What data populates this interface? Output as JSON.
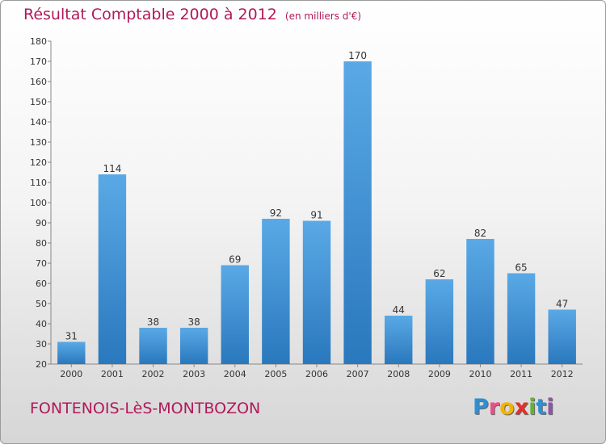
{
  "chart_data": {
    "type": "bar",
    "title": "Résultat Comptable 2000 à 2012",
    "subtitle": "(en milliers d'€)",
    "categories": [
      "2000",
      "2001",
      "2002",
      "2003",
      "2004",
      "2005",
      "2006",
      "2007",
      "2008",
      "2009",
      "2010",
      "2011",
      "2012"
    ],
    "values": [
      31,
      114,
      38,
      38,
      69,
      92,
      91,
      170,
      44,
      62,
      82,
      65,
      47
    ],
    "ylim": [
      20,
      180
    ],
    "yticks": [
      20,
      30,
      40,
      50,
      60,
      70,
      80,
      90,
      100,
      110,
      120,
      130,
      140,
      150,
      160,
      170,
      180
    ],
    "xlabel": "",
    "ylabel": "",
    "grid": false,
    "bar_color_top": "#5aa9e6",
    "bar_color_bottom": "#2a78bd"
  },
  "footer": {
    "commune": "FONTENOIS-LèS-MONTBOZON"
  },
  "logo": {
    "letters": [
      "P",
      "r",
      "o",
      "x",
      "i",
      "t",
      "i"
    ]
  }
}
